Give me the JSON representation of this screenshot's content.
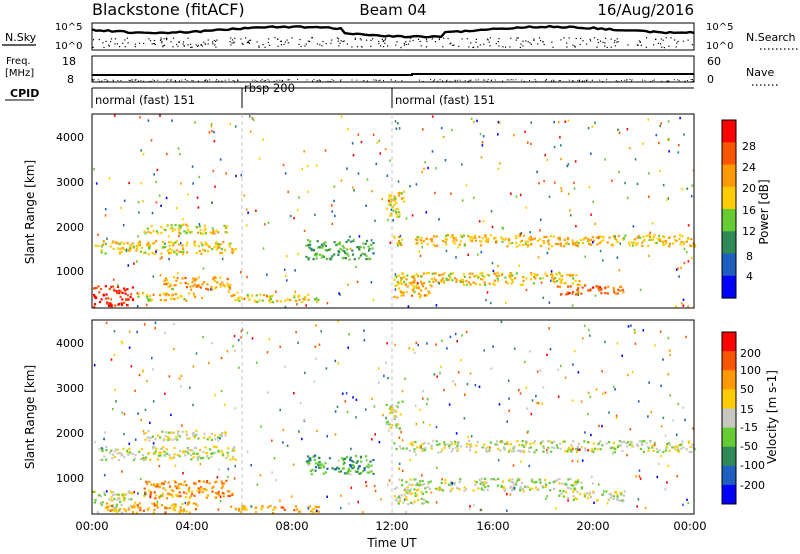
{
  "header": {
    "station": "Blackstone (fitACF)",
    "beam": "Beam 04",
    "date": "16/Aug/2016"
  },
  "noise_panel": {
    "left_label": "N.Sky",
    "right_label": "N.Search",
    "tick_top": "10^5",
    "tick_bottom": "10^0"
  },
  "freq_panel": {
    "left_label_1": "Freq.",
    "left_label_2": "[MHz]",
    "left_ticks": [
      "18",
      "8"
    ],
    "right_label": "Nave",
    "right_ticks": [
      "60",
      "0"
    ]
  },
  "cpid_panel": {
    "label": "CPID",
    "segments": [
      {
        "label": "normal (fast) 151",
        "start_hour": 0,
        "end_hour": 6
      },
      {
        "label": "rbsp 200",
        "start_hour": 6,
        "end_hour": 12
      },
      {
        "label": "normal (fast) 151",
        "start_hour": 12,
        "end_hour": 24
      }
    ]
  },
  "x_axis": {
    "label": "Time UT",
    "ticks": [
      "00:00",
      "04:00",
      "08:00",
      "12:00",
      "16:00",
      "20:00",
      "00:00"
    ]
  },
  "chart_data": [
    {
      "type": "heatmap",
      "quantity": "Power",
      "ylabel": "Slant Range [km]",
      "xlabel": "Time UT",
      "xlim_hours": [
        0,
        24
      ],
      "ylim_km": [
        180,
        4500
      ],
      "y_ticks": [
        1000,
        2000,
        3000,
        4000
      ],
      "colorbar_label": "Power [dB]",
      "colorbar_ticks": [
        "28",
        "24",
        "20",
        "16",
        "12",
        "8",
        "4"
      ],
      "colorbar_colors": [
        "#0000ff",
        "#1f5fbf",
        "#2e8b57",
        "#66cc33",
        "#ffcc00",
        "#ff9900",
        "#ff5500",
        "#ff0000"
      ],
      "echo_bands": [
        {
          "t_start": 0.1,
          "t_end": 5.7,
          "range_center_km": 1550,
          "range_halfwidth_km": 150,
          "level": 0.6
        },
        {
          "t_start": 2.0,
          "t_end": 5.5,
          "range_center_km": 1950,
          "range_halfwidth_km": 110,
          "level": 0.55
        },
        {
          "t_start": 0.0,
          "t_end": 1.6,
          "range_center_km": 450,
          "range_halfwidth_km": 260,
          "level": 0.95
        },
        {
          "t_start": 2.8,
          "t_end": 5.6,
          "range_center_km": 750,
          "range_halfwidth_km": 140,
          "level": 0.7
        },
        {
          "t_start": 1.8,
          "t_end": 4.2,
          "range_center_km": 450,
          "range_halfwidth_km": 90,
          "level": 0.6
        },
        {
          "t_start": 5.5,
          "t_end": 9.0,
          "range_center_km": 420,
          "range_halfwidth_km": 90,
          "level": 0.55
        },
        {
          "t_start": 8.5,
          "t_end": 11.2,
          "range_center_km": 1500,
          "range_halfwidth_km": 220,
          "level": 0.35
        },
        {
          "t_start": 11.7,
          "t_end": 12.4,
          "range_center_km": 2500,
          "range_halfwidth_km": 320,
          "level": 0.55
        },
        {
          "t_start": 12.0,
          "t_end": 24.0,
          "range_center_km": 1700,
          "range_halfwidth_km": 130,
          "level": 0.62
        },
        {
          "t_start": 12.0,
          "t_end": 19.5,
          "range_center_km": 850,
          "range_halfwidth_km": 140,
          "level": 0.6
        },
        {
          "t_start": 18.5,
          "t_end": 21.2,
          "range_center_km": 600,
          "range_halfwidth_km": 110,
          "level": 0.8
        },
        {
          "t_start": 12.0,
          "t_end": 13.5,
          "range_center_km": 600,
          "range_halfwidth_km": 180,
          "level": 0.7
        }
      ]
    },
    {
      "type": "heatmap",
      "quantity": "Velocity",
      "ylabel": "Slant Range [km]",
      "xlabel": "Time UT",
      "xlim_hours": [
        0,
        24
      ],
      "ylim_km": [
        180,
        4500
      ],
      "y_ticks": [
        1000,
        2000,
        3000,
        4000
      ],
      "colorbar_label": "Velocity [m s-1]",
      "colorbar_ticks": [
        "200",
        "100",
        "50",
        "15",
        "-15",
        "-50",
        "-100",
        "-200"
      ],
      "colorbar_colors": [
        "#0000ff",
        "#1f5fbf",
        "#2e8b57",
        "#66cc33",
        "#c8c8c0",
        "#ffcc00",
        "#ff9900",
        "#ff5500",
        "#ff0000"
      ],
      "echo_bands": [
        {
          "t_start": 0.1,
          "t_end": 5.7,
          "range_center_km": 1550,
          "range_halfwidth_km": 150,
          "level": 0.5
        },
        {
          "t_start": 2.0,
          "t_end": 5.5,
          "range_center_km": 1950,
          "range_halfwidth_km": 110,
          "level": 0.5
        },
        {
          "t_start": 0.0,
          "t_end": 1.6,
          "range_center_km": 450,
          "range_halfwidth_km": 260,
          "level": 0.5
        },
        {
          "t_start": 2.0,
          "t_end": 5.6,
          "range_center_km": 750,
          "range_halfwidth_km": 200,
          "level": 0.78
        },
        {
          "t_start": 0.5,
          "t_end": 4.2,
          "range_center_km": 350,
          "range_halfwidth_km": 120,
          "level": 0.72
        },
        {
          "t_start": 5.5,
          "t_end": 9.0,
          "range_center_km": 300,
          "range_halfwidth_km": 90,
          "level": 0.7
        },
        {
          "t_start": 8.5,
          "t_end": 11.2,
          "range_center_km": 1300,
          "range_halfwidth_km": 220,
          "level": 0.3
        },
        {
          "t_start": 11.7,
          "t_end": 12.4,
          "range_center_km": 2400,
          "range_halfwidth_km": 320,
          "level": 0.5
        },
        {
          "t_start": 12.0,
          "t_end": 24.0,
          "range_center_km": 1700,
          "range_halfwidth_km": 130,
          "level": 0.5
        },
        {
          "t_start": 12.0,
          "t_end": 19.5,
          "range_center_km": 850,
          "range_halfwidth_km": 140,
          "level": 0.5
        },
        {
          "t_start": 18.5,
          "t_end": 21.2,
          "range_center_km": 600,
          "range_halfwidth_km": 110,
          "level": 0.5
        },
        {
          "t_start": 12.0,
          "t_end": 13.5,
          "range_center_km": 600,
          "range_halfwidth_km": 180,
          "level": 0.5
        }
      ]
    }
  ]
}
